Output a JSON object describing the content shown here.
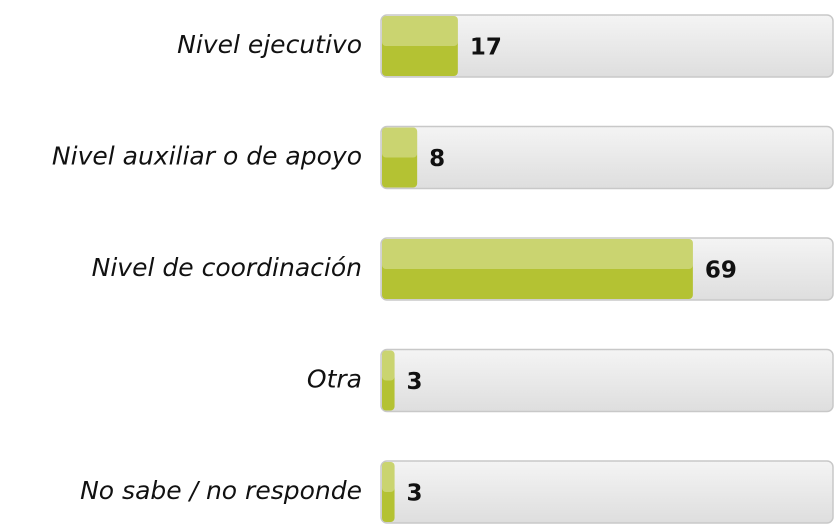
{
  "chart_data": {
    "type": "bar",
    "orientation": "horizontal",
    "categories": [
      "Nivel ejecutivo",
      "Nivel auxiliar o de apoyo",
      "Nivel de coordinación",
      "Otra",
      "No sabe / no responde"
    ],
    "values": [
      17,
      8,
      69,
      3,
      3
    ],
    "color": "#b4c233",
    "xlim": [
      0,
      100
    ]
  }
}
